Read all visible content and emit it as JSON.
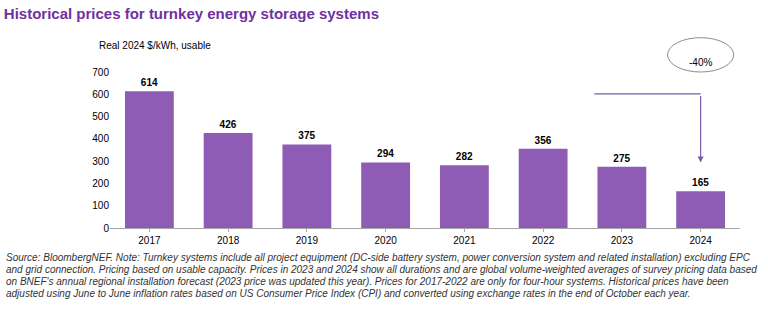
{
  "chart_data": {
    "type": "bar",
    "title": "Historical prices for turnkey energy storage systems",
    "subtitle": "Real 2024 $/kWh, usable",
    "categories": [
      "2017",
      "2018",
      "2019",
      "2020",
      "2021",
      "2022",
      "2023",
      "2024"
    ],
    "values": [
      614,
      426,
      375,
      294,
      282,
      356,
      275,
      165
    ],
    "color": "#8e5cb5",
    "ylim": [
      0,
      700
    ],
    "yticks": [
      0,
      100,
      200,
      300,
      400,
      500,
      600,
      700
    ],
    "grid": false,
    "data_labels": true,
    "annotations": [
      "-40%"
    ],
    "note": "Source: BloombergNEF. Note: Turnkey systems include all project equipment (DC-side battery system, power conversion system and related installation) excluding EPC and grid connection. Pricing based on usable capacity. Prices in 2023 and 2024 show all durations and are global volume-weighted averages of survey pricing data based on BNEF's annual regional installation forecast (2023 price was updated this year). Prices for 2017-2022 are only for four-hour systems. Historical prices have been adjusted using June to June inflation rates based on US Consumer Price Index (CPI) and converted using exchange rates in the end of October each year."
  }
}
